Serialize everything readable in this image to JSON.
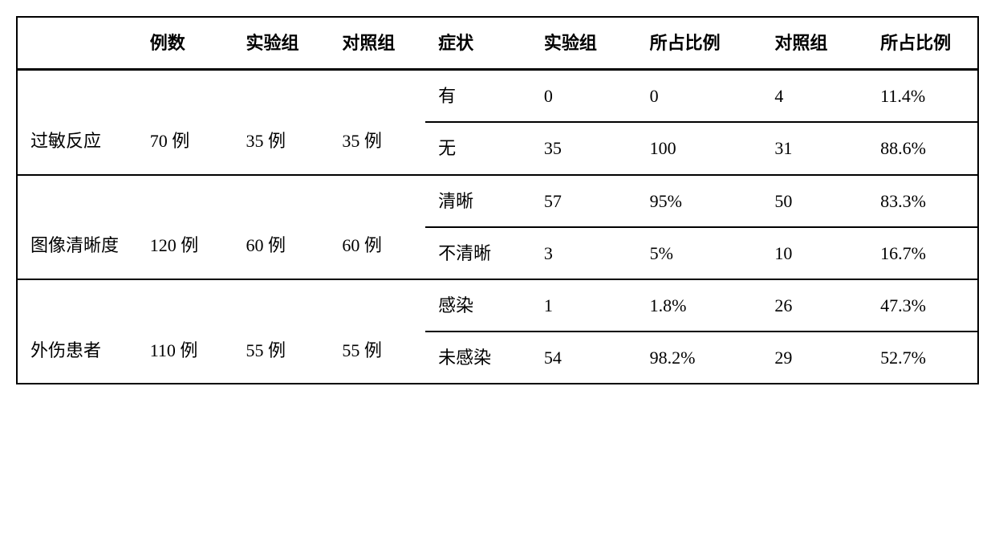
{
  "table": {
    "type": "table",
    "background_color": "#ffffff",
    "border_color": "#000000",
    "outer_border_width": 2,
    "header_border_width": 3,
    "section_border_width": 2,
    "sub_border_width": 2,
    "font_family": "SimSun",
    "header_fontsize": 22,
    "cell_fontsize": 22,
    "text_color": "#000000",
    "columns": [
      "",
      "例数",
      "实验组",
      "对照组",
      "症状",
      "实验组",
      "所占比例",
      "对照组",
      "所占比例"
    ],
    "col_widths_pct": [
      12.5,
      10,
      10,
      10,
      11,
      11,
      13,
      11,
      11.5
    ],
    "sections": [
      {
        "row_label": "过敏反应",
        "cases": "70 例",
        "exp_group": "35 例",
        "ctrl_group": "35 例",
        "subrows": [
          {
            "symptom": "有",
            "exp_val": "0",
            "exp_pct": "0",
            "ctrl_val": "4",
            "ctrl_pct": "11.4%"
          },
          {
            "symptom": "无",
            "exp_val": "35",
            "exp_pct": "100",
            "ctrl_val": "31",
            "ctrl_pct": "88.6%"
          }
        ]
      },
      {
        "row_label": "图像清晰度",
        "cases": "120 例",
        "exp_group": "60 例",
        "ctrl_group": "60 例",
        "subrows": [
          {
            "symptom": "清晰",
            "exp_val": "57",
            "exp_pct": "95%",
            "ctrl_val": "50",
            "ctrl_pct": "83.3%"
          },
          {
            "symptom": "不清晰",
            "exp_val": "3",
            "exp_pct": "5%",
            "ctrl_val": "10",
            "ctrl_pct": "16.7%"
          }
        ]
      },
      {
        "row_label": "外伤患者",
        "cases": "110 例",
        "exp_group": "55 例",
        "ctrl_group": "55 例",
        "subrows": [
          {
            "symptom": "感染",
            "exp_val": "1",
            "exp_pct": "1.8%",
            "ctrl_val": "26",
            "ctrl_pct": "47.3%"
          },
          {
            "symptom": "未感染",
            "exp_val": "54",
            "exp_pct": "98.2%",
            "ctrl_val": "29",
            "ctrl_pct": "52.7%"
          }
        ]
      }
    ]
  }
}
